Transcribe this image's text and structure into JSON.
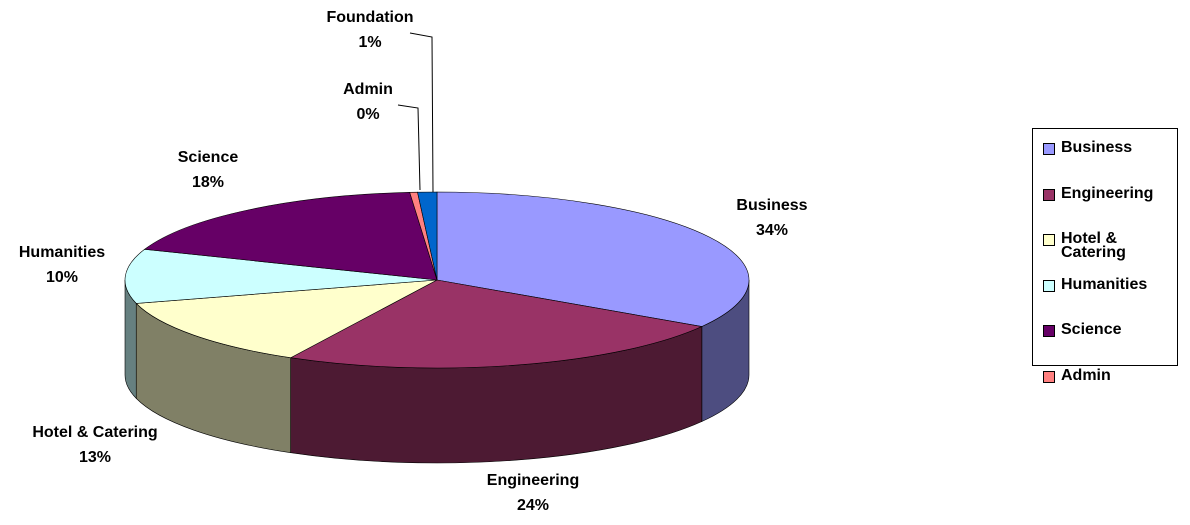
{
  "chart_data": {
    "type": "pie3d",
    "categories": [
      "Business",
      "Engineering",
      "Hotel & Catering",
      "Humanities",
      "Science",
      "Admin",
      "Foundation"
    ],
    "values": [
      34,
      24,
      13,
      10,
      18,
      0.4,
      1
    ],
    "value_labels": [
      "34%",
      "24%",
      "13%",
      "10%",
      "18%",
      "0%",
      "1%"
    ],
    "colors": [
      "#9999ff",
      "#993366",
      "#ffffcc",
      "#ccffff",
      "#660066",
      "#ff8080",
      "#0066cc"
    ],
    "legend": [
      "Business",
      "Engineering",
      "Hotel & Catering",
      "Humanities",
      "Science",
      "Admin"
    ]
  }
}
